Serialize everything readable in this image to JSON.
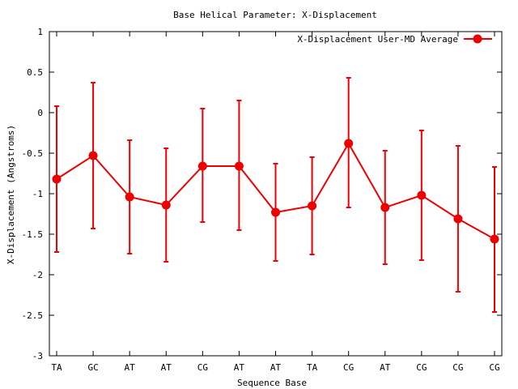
{
  "chart_data": {
    "type": "line",
    "title": "Base  Helical Parameter: X-Displacement",
    "xlabel": "Sequence Base",
    "ylabel": "X-Displacement (Angstroms)",
    "ylim": [
      -3,
      1
    ],
    "yticks": [
      1,
      0.5,
      0,
      -0.5,
      -1,
      -1.5,
      -2,
      -2.5,
      -3
    ],
    "ytick_labels": [
      "1",
      "0.5",
      "0",
      "-0.5",
      "-1",
      "-1.5",
      "-2",
      "-2.5",
      "-3"
    ],
    "categories": [
      "TA",
      "GC",
      "AT",
      "AT",
      "CG",
      "AT",
      "AT",
      "TA",
      "CG",
      "AT",
      "CG",
      "CG",
      "CG"
    ],
    "legend_position": "top-right",
    "grid": false,
    "series": [
      {
        "name": "X-Displacement User-MD Average",
        "color": "#ee0000",
        "values": [
          -0.82,
          -0.53,
          -1.04,
          -1.14,
          -0.66,
          -0.66,
          -1.23,
          -1.15,
          -0.38,
          -1.17,
          -1.02,
          -1.31,
          -1.56
        ],
        "error_low": [
          -1.72,
          -1.43,
          -1.74,
          -1.84,
          -1.35,
          -1.45,
          -1.83,
          -1.75,
          -1.17,
          -1.87,
          -1.82,
          -2.21,
          -2.46
        ],
        "error_high": [
          0.08,
          0.37,
          -0.34,
          -0.44,
          0.05,
          0.15,
          -0.63,
          -0.55,
          0.43,
          -0.47,
          -0.22,
          -0.41,
          -0.67
        ]
      }
    ]
  }
}
